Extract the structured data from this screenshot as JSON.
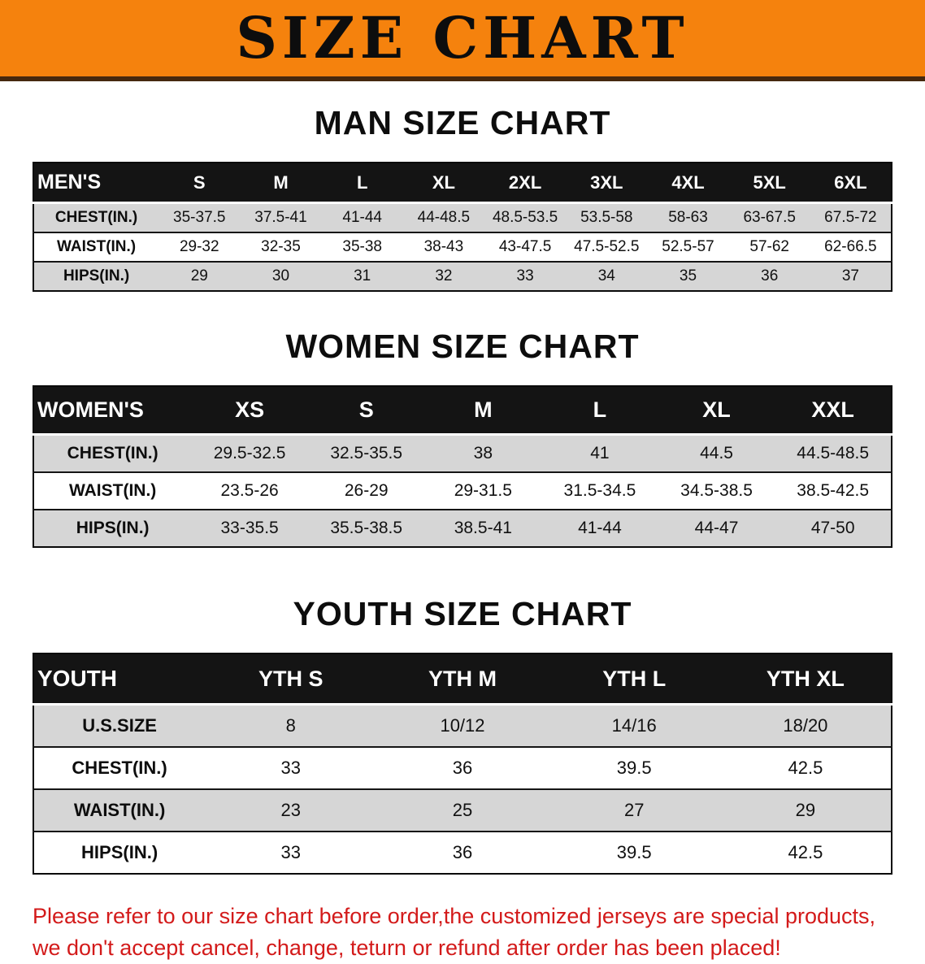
{
  "banner": {
    "title": "SIZE CHART",
    "bg_color": "#f5820d"
  },
  "sections": [
    {
      "heading": "MAN SIZE CHART",
      "table": {
        "name": "mens-size-table",
        "header": [
          "MEN'S",
          "S",
          "M",
          "L",
          "XL",
          "2XL",
          "3XL",
          "4XL",
          "5XL",
          "6XL"
        ],
        "rows": [
          {
            "label": "CHEST(IN.)",
            "values": [
              "35-37.5",
              "37.5-41",
              "41-44",
              "44-48.5",
              "48.5-53.5",
              "53.5-58",
              "58-63",
              "63-67.5",
              "67.5-72"
            ]
          },
          {
            "label": "WAIST(IN.)",
            "values": [
              "29-32",
              "32-35",
              "35-38",
              "38-43",
              "43-47.5",
              "47.5-52.5",
              "52.5-57",
              "57-62",
              "62-66.5"
            ]
          },
          {
            "label": "HIPS(IN.)",
            "values": [
              "29",
              "30",
              "31",
              "32",
              "33",
              "34",
              "35",
              "36",
              "37"
            ]
          }
        ]
      }
    },
    {
      "heading": "WOMEN SIZE CHART",
      "table": {
        "name": "womens-size-table",
        "header": [
          "WOMEN'S",
          "XS",
          "S",
          "M",
          "L",
          "XL",
          "XXL"
        ],
        "rows": [
          {
            "label": "CHEST(IN.)",
            "values": [
              "29.5-32.5",
              "32.5-35.5",
              "38",
              "41",
              "44.5",
              "44.5-48.5"
            ]
          },
          {
            "label": "WAIST(IN.)",
            "values": [
              "23.5-26",
              "26-29",
              "29-31.5",
              "31.5-34.5",
              "34.5-38.5",
              "38.5-42.5"
            ]
          },
          {
            "label": "HIPS(IN.)",
            "values": [
              "33-35.5",
              "35.5-38.5",
              "38.5-41",
              "41-44",
              "44-47",
              "47-50"
            ]
          }
        ]
      }
    },
    {
      "heading": "YOUTH SIZE CHART",
      "table": {
        "name": "youth-size-table",
        "header": [
          "YOUTH",
          "YTH S",
          "YTH M",
          "YTH L",
          "YTH XL"
        ],
        "rows": [
          {
            "label": "U.S.SIZE",
            "values": [
              "8",
              "10/12",
              "14/16",
              "18/20"
            ]
          },
          {
            "label": "CHEST(IN.)",
            "values": [
              "33",
              "36",
              "39.5",
              "42.5"
            ]
          },
          {
            "label": "WAIST(IN.)",
            "values": [
              "23",
              "25",
              "27",
              "29"
            ]
          },
          {
            "label": "HIPS(IN.)",
            "values": [
              "33",
              "36",
              "39.5",
              "42.5"
            ]
          }
        ]
      }
    }
  ],
  "footer": {
    "line1": "Please refer to our size chart before order,the customized jerseys are special products,",
    "line2": "we don't accept cancel, change, teturn or refund after order has been placed!",
    "text_color": "#d31a1a"
  }
}
